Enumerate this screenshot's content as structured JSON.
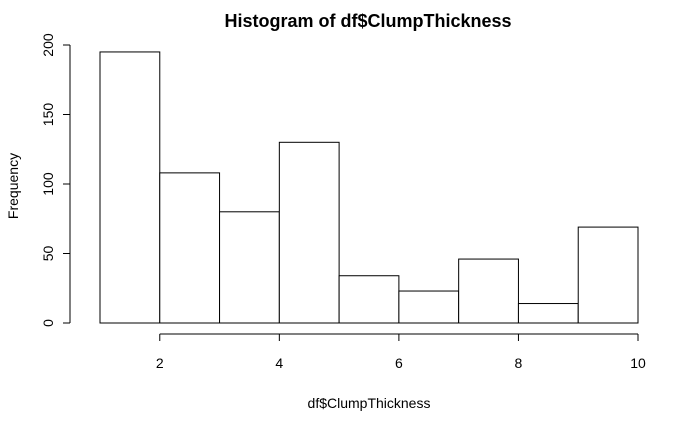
{
  "chart_data": {
    "type": "bar",
    "title": "Histogram of df$ClumpThickness",
    "xlabel": "df$ClumpThickness",
    "ylabel": "Frequency",
    "bins": [
      {
        "start": 1,
        "end": 2,
        "value": 195
      },
      {
        "start": 2,
        "end": 3,
        "value": 108
      },
      {
        "start": 3,
        "end": 4,
        "value": 80
      },
      {
        "start": 4,
        "end": 5,
        "value": 130
      },
      {
        "start": 5,
        "end": 6,
        "value": 34
      },
      {
        "start": 6,
        "end": 7,
        "value": 23
      },
      {
        "start": 7,
        "end": 8,
        "value": 46
      },
      {
        "start": 8,
        "end": 9,
        "value": 14
      },
      {
        "start": 9,
        "end": 10,
        "value": 69
      }
    ],
    "xlim": [
      1,
      10
    ],
    "ylim": [
      0,
      200
    ],
    "x_ticks": [
      2,
      4,
      6,
      8,
      10
    ],
    "y_ticks": [
      0,
      50,
      100,
      150,
      200
    ],
    "grid": false,
    "legend": "none",
    "colors": {
      "bar_fill": "#ffffff",
      "bar_stroke": "#000000",
      "axis": "#000000"
    }
  }
}
